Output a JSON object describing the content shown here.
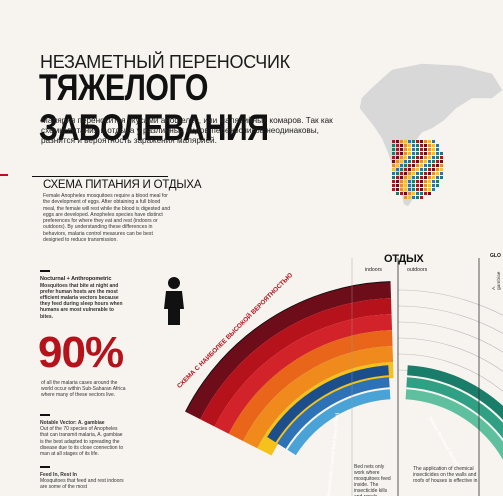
{
  "header": {
    "kicker": "НЕЗАМЕТНЫЙ ПЕРЕНОСЧИК",
    "title": "ТЯЖЕЛОГО ЗАБОЛЕВАНИЯ",
    "lead": "Малярия переносится укусами анофелес, или малярийных комаров. Так как схемы питания и отдыха у различных видов-переносчиков неодинаковы, разнится и вероятность заражения малярией."
  },
  "section": {
    "title": "СХЕМА ПИТАНИЯ И ОТДЫХА",
    "text": "Female Anopheles mosquitoes require a blood meal for the development of eggs. After obtaining a full blood meal, the female will rest while the blood is digested and eggs are developed. Anopheles species have distinct preferences for where they eat and rest (indoors or outdoors). By understanding these differences in behaviors, malaria control measures can be best designed to reduce transmission."
  },
  "sidebar": {
    "nocturnal_title": "Nocturnal + Anthropometric",
    "nocturnal_text": "Mosquitoes that bite at night and prefer human hosts are the most efficient malaria vectors because they feed during sleep hours when humans are most vulnerable to bites.",
    "stat_value": "90%",
    "stat_text": "of all the malaria cases around the world occur within Sub-Saharan Africa where many of these vectors live.",
    "vector_title": "Notable Vector: A. gambiae",
    "vector_text": "Out of the 70 species of Anopheles that can transmit malaria, A. gambiae is the best adapted to spreading the disease due to its close connection to man at all stages of its life.",
    "feed_title": "Feed In, Rest In",
    "feed_text": "Mosquitoes that feed and rest indoors are some of the most"
  },
  "chart": {
    "outdoor_heading": "ОТДЫХ",
    "indoors_label": "indoors",
    "outdoors_label": "outdoors",
    "arc_label": "СХЕМА С НАИБОЛЕЕ ВЫСОКОЙ ВЕРОЯТНОСТЬЮ",
    "legend_tag": "GLO",
    "species_label": "A. gambiae",
    "itn_label": "Insecticide-Treated Bed Nets (ITNs)",
    "irs_label": "Indoor Residual Spraying (IRS)",
    "itn_note": "Bed nets only work where mosquitoes feed inside. The insecticide kills and repels",
    "irs_note": "The application of chemical insecticides on the walls and roofs of houses is effective in"
  },
  "colors": {
    "accent": "#b5121b",
    "dark": "#6e0d1a",
    "orange": "#f08a1c",
    "yellow": "#f4c21b",
    "blue": "#1d4e8c"
  }
}
